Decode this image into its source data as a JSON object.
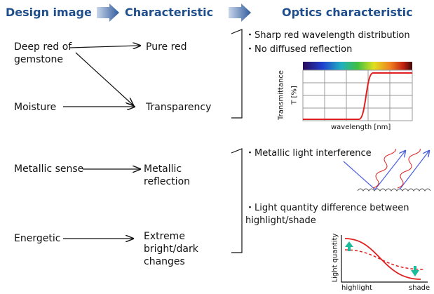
{
  "headers": [
    "Design image",
    "Characteristic",
    "Optics characteristic"
  ],
  "sections": [
    {
      "design": [
        "Deep red of gemstone",
        "Moisture"
      ],
      "characteristic": [
        "Pure red",
        "Transparency"
      ],
      "optics": [
        "・Sharp red wavelength distribution",
        "・No diffused reflection"
      ],
      "graph": {
        "y_label": "Transmittance",
        "y_unit": "T [%]",
        "x_label": "wavelength [nm]"
      }
    },
    {
      "design": [
        "Metallic sense",
        "Energetic"
      ],
      "characteristic": [
        "Metallic reflection",
        "Extreme bright/dark changes"
      ],
      "optics": [
        "・Metallic light interference",
        "・Light quantity difference between highlight/shade"
      ],
      "graph": {
        "y_label": "Light quantity",
        "x_start": "highlight",
        "x_end": "shade"
      }
    }
  ]
}
